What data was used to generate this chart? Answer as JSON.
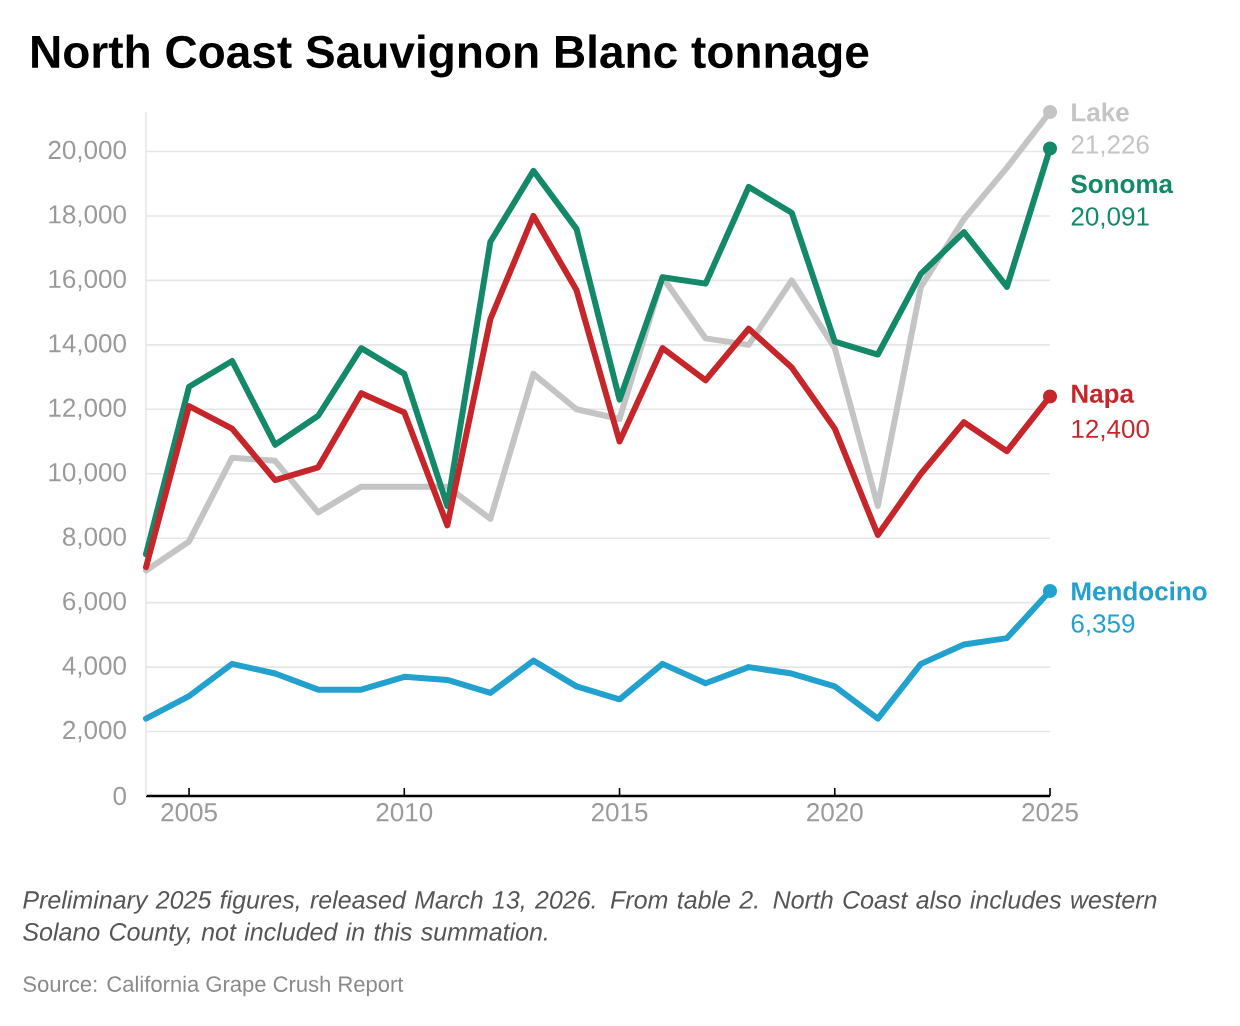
{
  "chart_data": {
    "type": "line",
    "title": "North Coast Sauvignon Blanc tonnage",
    "x": [
      2004,
      2005,
      2006,
      2007,
      2008,
      2009,
      2010,
      2011,
      2012,
      2013,
      2014,
      2015,
      2016,
      2017,
      2018,
      2019,
      2020,
      2021,
      2022,
      2023,
      2024,
      2025
    ],
    "series": [
      {
        "name": "Lake",
        "color": "#c4c4c4",
        "values": [
          7000,
          7900,
          10500,
          10400,
          8800,
          9600,
          9600,
          9600,
          8600,
          13100,
          12000,
          11700,
          16100,
          14200,
          14000,
          16000,
          13900,
          9000,
          15800,
          17900,
          19500,
          21226
        ],
        "value_labels": [
          null,
          null,
          null,
          null,
          null,
          null,
          null,
          null,
          null,
          null,
          null,
          null,
          null,
          null,
          null,
          null,
          null,
          null,
          null,
          null,
          null,
          "21,226"
        ]
      },
      {
        "name": "Sonoma",
        "color": "#13896a",
        "values": [
          7500,
          12700,
          13500,
          10900,
          11800,
          13900,
          13100,
          9000,
          17200,
          19400,
          17600,
          12300,
          16100,
          15900,
          18900,
          18100,
          14100,
          13700,
          16200,
          17500,
          15800,
          20091
        ],
        "value_labels": [
          null,
          null,
          null,
          null,
          null,
          null,
          null,
          null,
          null,
          null,
          null,
          null,
          null,
          null,
          null,
          null,
          null,
          null,
          null,
          null,
          null,
          "20,091"
        ]
      },
      {
        "name": "Napa",
        "color": "#c6262a",
        "values": [
          7100,
          12100,
          11400,
          9800,
          10200,
          12500,
          11900,
          8400,
          14800,
          18000,
          15700,
          11000,
          13900,
          12900,
          14500,
          13300,
          11400,
          8100,
          10000,
          11600,
          10700,
          12400
        ],
        "value_labels": [
          null,
          null,
          null,
          null,
          null,
          null,
          null,
          null,
          null,
          null,
          null,
          null,
          null,
          null,
          null,
          null,
          null,
          null,
          null,
          null,
          null,
          "12,400"
        ]
      },
      {
        "name": "Mendocino",
        "color": "#22a1cf",
        "values": [
          2400,
          3100,
          4100,
          3800,
          3300,
          3300,
          3700,
          3600,
          3200,
          4200,
          3400,
          3000,
          4100,
          3500,
          4000,
          3800,
          3400,
          2400,
          4100,
          4700,
          4900,
          6359
        ],
        "value_labels": [
          null,
          null,
          null,
          null,
          null,
          null,
          null,
          null,
          null,
          null,
          null,
          null,
          null,
          null,
          null,
          null,
          null,
          null,
          null,
          null,
          null,
          "6,359"
        ]
      }
    ],
    "xlim": [
      2004,
      2025
    ],
    "xticks": [
      2005,
      2010,
      2015,
      2020,
      2025
    ],
    "yticks": [
      {
        "value": 0,
        "label": "0"
      },
      {
        "value": 2000,
        "label": "2,000"
      },
      {
        "value": 4000,
        "label": "4,000"
      },
      {
        "value": 6000,
        "label": "6,000"
      },
      {
        "value": 8000,
        "label": "8,000"
      },
      {
        "value": 10000,
        "label": "10,000"
      },
      {
        "value": 12000,
        "label": "12,000"
      },
      {
        "value": 14000,
        "label": "14,000"
      },
      {
        "value": 16000,
        "label": "16,000"
      },
      {
        "value": 18000,
        "label": "18,000"
      },
      {
        "value": 20000,
        "label": "20,000"
      }
    ],
    "ylim": [
      0,
      21226
    ],
    "grid": "y",
    "annotations": [
      "Preliminary 2025 figures, released March 13, 2026. From table 2. North Coast also includes western Solano County, not included in this summation.",
      "Source: California Grape Crush Report"
    ]
  }
}
